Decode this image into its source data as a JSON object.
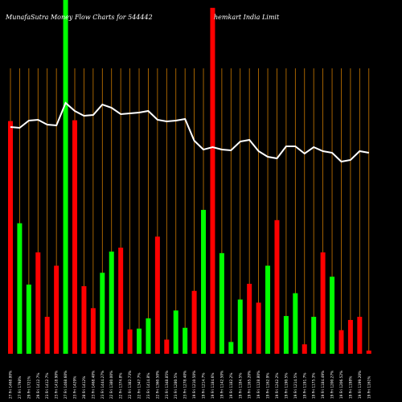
{
  "title_left": "MunafaSutra  Money Flow  Charts for 544442",
  "title_right": "hemkart India  Limit",
  "colors": {
    "background": "#000000",
    "up": "#00ff00",
    "down": "#ff0000",
    "grid": "#cc7a00",
    "line": "#ffffff"
  },
  "chart_data": {
    "type": "bar",
    "categories": [
      "27 Fri 1468.80%",
      "27 Fri 1798%",
      "29 Fri 1721%",
      "29 Fri 1412.7%",
      "23 Fri 1412.7%",
      "23 Fri 1418.90%",
      "27 Fri 1468.60%",
      "23 Fri 1429%",
      "28 Fri 1412%",
      "23 Fri 1468.40%",
      "23 Fri 1444.27%",
      "22 Fri 1380.00%",
      "22 Fri 1374.8%",
      "22 Fri 1382.73%",
      "22 Fri 1347.7%",
      "23 Fri 1414.8%",
      "22 Fri 1360.50%",
      "23 Fri 1348.85%",
      "23 Fri 1280.5%",
      "23 Fri 1278.40%",
      "19 Fri 1210.50%",
      "19 Fri 1214.7%",
      "19 Fri 1184.6%",
      "19 Fri 1142.50%",
      "19 Fri 1182.2%",
      "19 Fri 1184.5%",
      "19 Fri 1165.20%",
      "19 Fri 1128.80%",
      "19 Fri 1162.9%",
      "19 Fri 1242.2%",
      "19 Fri 1190.5%",
      "19 Fri 1214.5%",
      "19 Fri 1191.7%",
      "19 Fri 1175.3%",
      "19 Fri 1184.49%",
      "19 Fri 1200.27%",
      "19 Fri 1206.52%",
      "19 Fri 1198%",
      "19 Fri 1199.20%",
      "19 Fri 1161%"
    ],
    "flow_direction": [
      "down",
      "up",
      "up",
      "down",
      "down",
      "down",
      "up",
      "down",
      "down",
      "down",
      "up",
      "up",
      "down",
      "down",
      "up",
      "up",
      "down",
      "down",
      "up",
      "up",
      "down",
      "up",
      "down",
      "up",
      "up",
      "up",
      "down",
      "down",
      "up",
      "down",
      "up",
      "up",
      "down",
      "up",
      "down",
      "up",
      "down",
      "down",
      "down",
      "down"
    ],
    "values": [
      296,
      166,
      88,
      129,
      47,
      112,
      450,
      297,
      86,
      58,
      103,
      130,
      135,
      31,
      32,
      45,
      149,
      18,
      55,
      33,
      80,
      183,
      440,
      128,
      15,
      69,
      89,
      65,
      112,
      170,
      48,
      77,
      12,
      47,
      129,
      98,
      30,
      43,
      47,
      4
    ],
    "price_line": [
      158,
      159,
      150,
      149,
      155,
      156,
      128,
      138,
      144,
      143,
      130,
      134,
      142,
      141,
      140,
      138,
      149,
      151,
      150,
      148,
      175,
      186,
      183,
      186,
      187,
      176,
      174,
      188,
      195,
      197,
      182,
      182,
      191,
      183,
      188,
      190,
      201,
      199,
      188,
      190
    ],
    "price_direction": "down",
    "grid": true,
    "legend": "none"
  }
}
